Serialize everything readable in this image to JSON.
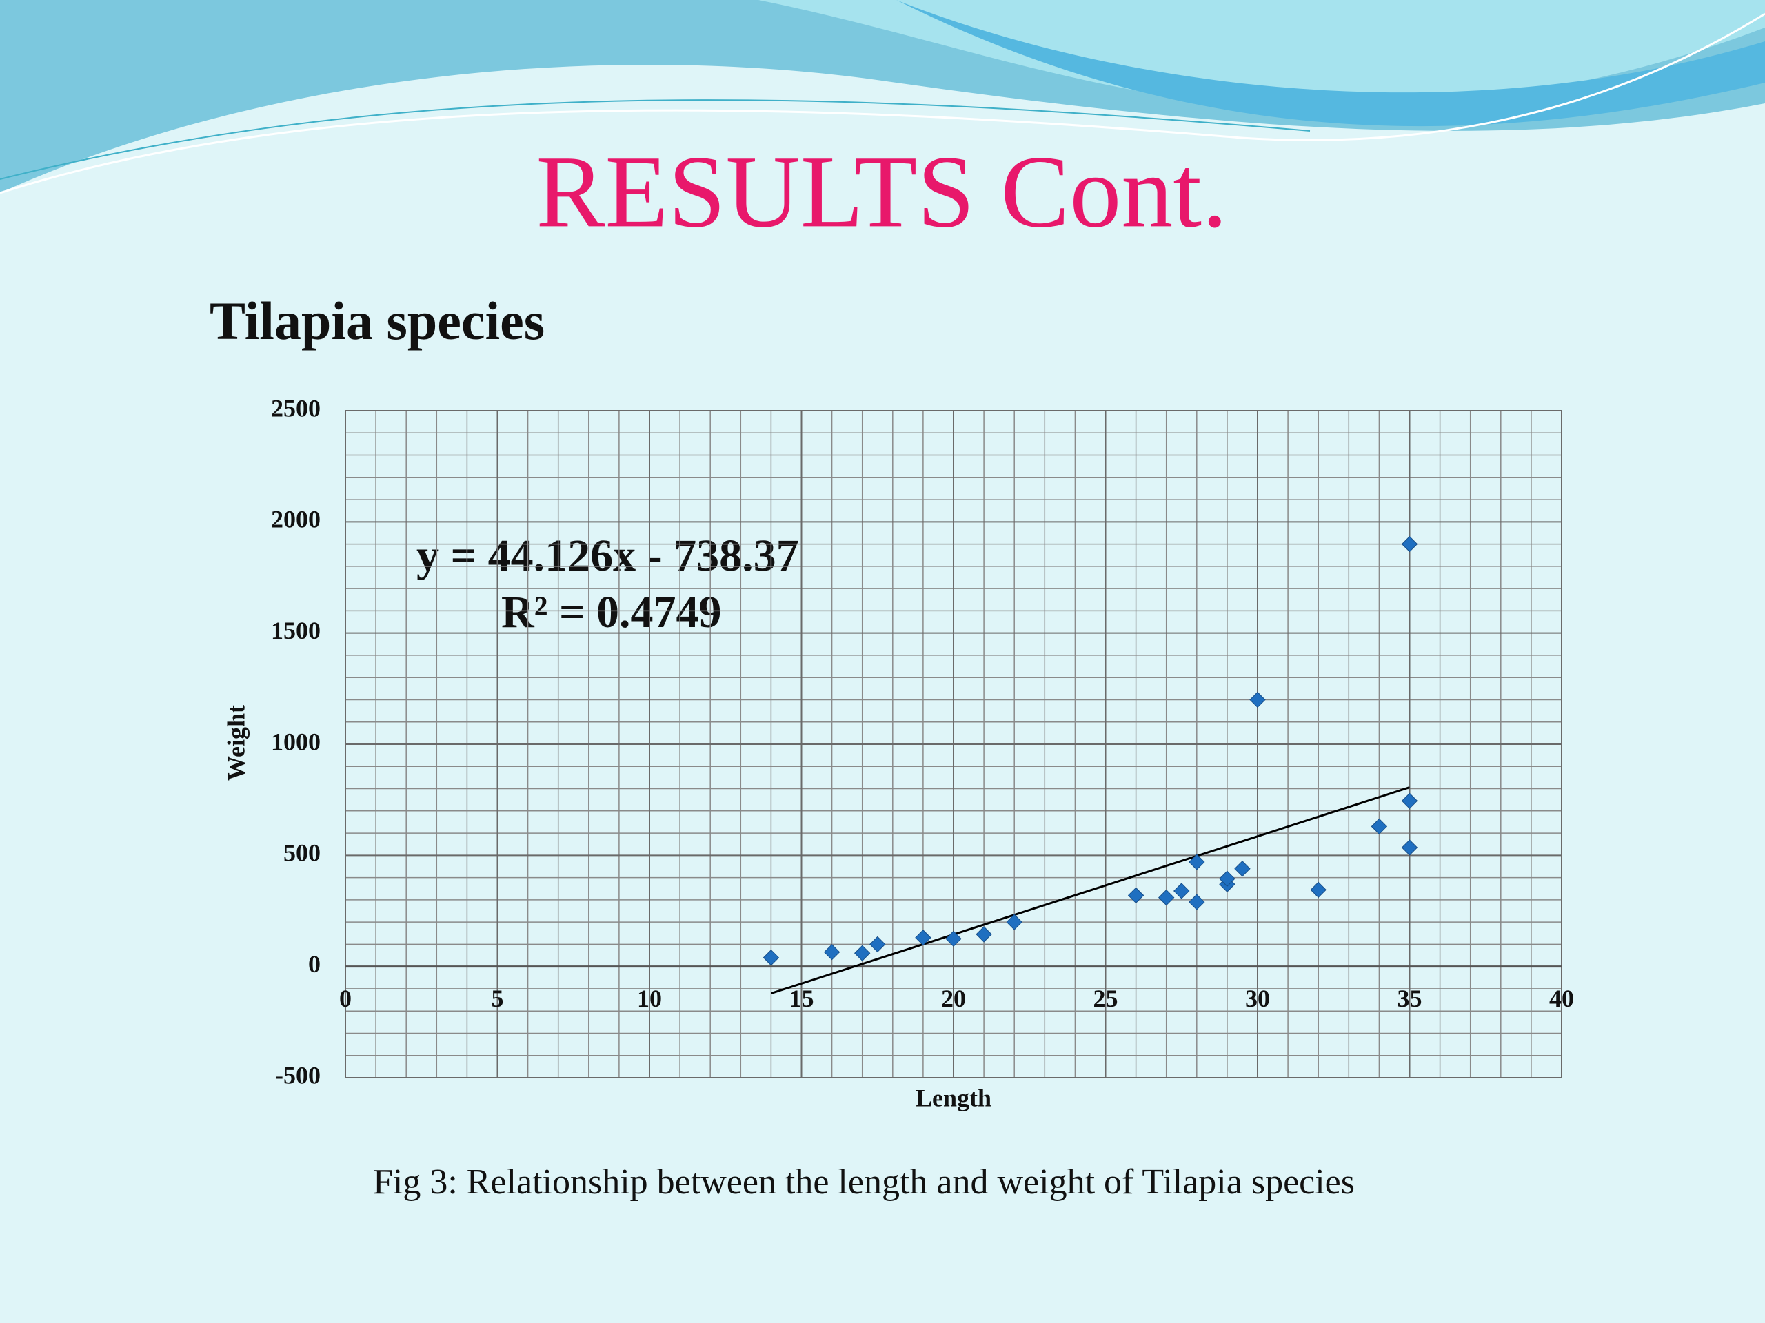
{
  "slide": {
    "title": "RESULTS Cont.",
    "heading": "Tilapia species",
    "caption": "Fig 3: Relationship between the length and weight of Tilapia species"
  },
  "chart_data": {
    "type": "scatter",
    "x_label": "Length",
    "y_label": "Weight",
    "color": "#1f6fc0",
    "grid": true,
    "x": [
      14,
      16,
      17,
      17.5,
      19,
      20,
      21,
      22,
      26,
      27,
      27.5,
      28,
      28,
      29,
      29,
      29.5,
      30,
      32,
      34,
      35,
      35,
      35
    ],
    "values": [
      40,
      65,
      60,
      100,
      130,
      125,
      145,
      200,
      320,
      310,
      340,
      290,
      470,
      370,
      395,
      440,
      1200,
      345,
      630,
      1900,
      745,
      535
    ],
    "xlim": [
      0,
      40
    ],
    "xticks": [
      0,
      5,
      10,
      15,
      20,
      25,
      30,
      35,
      40
    ],
    "ylim": [
      -500,
      2500
    ],
    "yticks": [
      -500,
      0,
      500,
      1000,
      1500,
      2000,
      2500
    ],
    "trendline": {
      "equation": "y = 44.126x - 738.37",
      "r_squared": "R² = 0.4749",
      "slope": 44.126,
      "intercept": -738.37,
      "color": "#000000"
    }
  }
}
